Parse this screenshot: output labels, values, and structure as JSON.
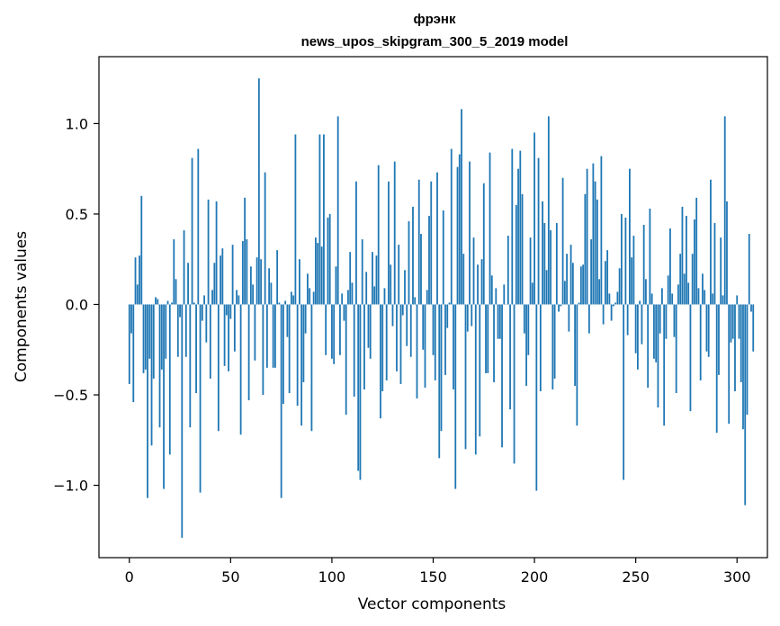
{
  "chart_data": {
    "type": "bar",
    "title": "фрэнк",
    "subtitle": "news_upos_skipgram_300_5_2019 model",
    "xlabel": "Vector components",
    "ylabel": "Components values",
    "xlim": [
      -15,
      315
    ],
    "ylim": [
      -1.4,
      1.37
    ],
    "xticks": [
      0,
      50,
      100,
      150,
      200,
      250,
      300
    ],
    "xtick_labels": [
      "0",
      "50",
      "100",
      "150",
      "200",
      "250",
      "300"
    ],
    "yticks": [
      -1.0,
      -0.5,
      0.0,
      0.5,
      1.0
    ],
    "ytick_labels": [
      "−1.0",
      "−0.5",
      "0.0",
      "0.5",
      "1.0"
    ],
    "grid": false,
    "bar_color": "#1f77b4",
    "values": [
      -0.44,
      -0.16,
      -0.54,
      0.26,
      0.11,
      0.27,
      0.6,
      -0.38,
      -0.36,
      -1.07,
      -0.3,
      -0.78,
      -0.41,
      0.04,
      0.03,
      -0.68,
      -0.36,
      -1.02,
      -0.3,
      0.02,
      -0.83,
      0.01,
      0.36,
      0.14,
      -0.29,
      -0.07,
      -1.29,
      0.41,
      -0.29,
      0.23,
      -0.68,
      0.81,
      0.01,
      -0.49,
      0.86,
      -1.04,
      -0.09,
      0.05,
      -0.21,
      0.58,
      -0.41,
      0.08,
      0.23,
      0.57,
      -0.7,
      0.27,
      0.31,
      -0.34,
      -0.06,
      -0.37,
      -0.08,
      0.33,
      -0.26,
      0.08,
      0.05,
      -0.72,
      0.35,
      0.59,
      0.36,
      -0.53,
      0.21,
      0.11,
      -0.31,
      0.26,
      1.25,
      0.25,
      -0.5,
      0.73,
      -0.35,
      0.2,
      0.12,
      -0.35,
      -0.35,
      0.3,
      0.01,
      -1.07,
      -0.55,
      0.02,
      -0.18,
      -0.49,
      0.07,
      0.05,
      0.94,
      -0.56,
      0.25,
      -0.67,
      -0.43,
      -0.16,
      0.17,
      0.09,
      -0.7,
      0.07,
      0.37,
      0.34,
      0.94,
      0.32,
      0.94,
      -0.28,
      0.48,
      0.5,
      -0.3,
      -0.33,
      0.21,
      1.04,
      -0.28,
      0.06,
      -0.09,
      -0.61,
      0.08,
      0.29,
      0.12,
      -0.51,
      0.68,
      -0.92,
      -0.97,
      0.36,
      -0.47,
      0.18,
      -0.24,
      -0.3,
      0.29,
      0.1,
      0.27,
      0.77,
      -0.63,
      -0.48,
      0.09,
      -0.42,
      0.68,
      0.22,
      -0.12,
      0.79,
      -0.37,
      0.33,
      -0.44,
      -0.06,
      0.19,
      -0.23,
      0.46,
      -0.29,
      0.54,
      0.04,
      -0.52,
      0.69,
      0.39,
      -0.25,
      -0.46,
      0.08,
      0.49,
      0.68,
      -0.28,
      -0.42,
      0.73,
      -0.85,
      -0.7,
      0.52,
      -0.39,
      -0.13,
      0.01,
      0.86,
      -0.47,
      -1.02,
      0.76,
      0.83,
      1.08,
      0.28,
      -0.8,
      -0.15,
      0.79,
      -0.12,
      0.37,
      -0.83,
      0.22,
      -0.73,
      0.25,
      0.67,
      -0.38,
      -0.38,
      0.84,
      0.16,
      -0.43,
      0.09,
      -0.19,
      -0.19,
      -0.79,
      0.11,
      0.0,
      0.38,
      -0.58,
      0.86,
      -0.88,
      0.55,
      0.75,
      0.85,
      0.61,
      -0.16,
      -0.45,
      -0.28,
      0.37,
      0.12,
      0.95,
      -1.03,
      0.81,
      -0.48,
      0.57,
      0.45,
      0.19,
      1.04,
      0.41,
      -0.47,
      -0.41,
      0.45,
      -0.04,
      -0.01,
      0.7,
      0.13,
      0.28,
      -0.15,
      0.33,
      0.23,
      -0.45,
      -0.67,
      0.01,
      0.21,
      0.22,
      0.61,
      0.75,
      -0.16,
      0.36,
      0.78,
      0.68,
      0.58,
      0.14,
      0.82,
      -0.11,
      0.24,
      0.3,
      0.06,
      -0.09,
      -0.01,
      0.01,
      0.07,
      0.2,
      0.5,
      -0.97,
      0.48,
      -0.17,
      0.75,
      0.26,
      0.38,
      -0.27,
      -0.36,
      0.02,
      -0.22,
      0.44,
      0.14,
      -0.46,
      0.53,
      0.06,
      -0.3,
      -0.32,
      -0.57,
      -0.16,
      0.09,
      -0.67,
      -0.19,
      0.16,
      0.42,
      0.06,
      -0.18,
      -0.49,
      0.11,
      0.28,
      0.54,
      0.17,
      0.49,
      0.12,
      -0.59,
      0.28,
      0.47,
      0.59,
      0.09,
      -0.42,
      0.17,
      0.08,
      -0.26,
      -0.29,
      0.69,
      0.06,
      0.45,
      -0.71,
      -0.39,
      0.37,
      0.05,
      1.04,
      0.57,
      -0.66,
      -0.21,
      -0.19,
      -0.48,
      0.05,
      -0.19,
      -0.43,
      -0.69,
      -1.11,
      -0.61,
      0.39,
      -0.04,
      -0.26
    ]
  }
}
